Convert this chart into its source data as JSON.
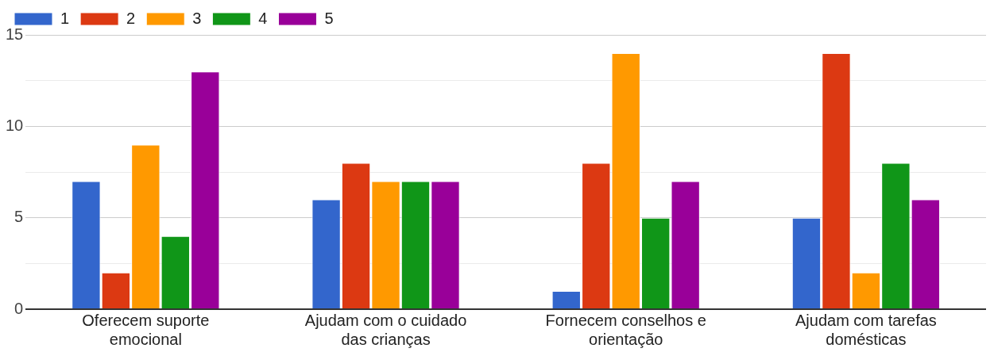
{
  "chart_data": {
    "type": "bar",
    "categories": [
      "Oferecem suporte emocional",
      "Ajudam com o cuidado das crianças",
      "Fornecem conselhos e orientação",
      "Ajudam com tarefas domésticas"
    ],
    "series": [
      {
        "name": "1",
        "color": "#3366cc",
        "values": [
          7,
          6,
          1,
          5
        ]
      },
      {
        "name": "2",
        "color": "#dc3912",
        "values": [
          2,
          8,
          8,
          14
        ]
      },
      {
        "name": "3",
        "color": "#ff9900",
        "values": [
          9,
          7,
          14,
          2
        ]
      },
      {
        "name": "4",
        "color": "#109618",
        "values": [
          4,
          7,
          5,
          8
        ]
      },
      {
        "name": "5",
        "color": "#990099",
        "values": [
          13,
          7,
          7,
          6
        ]
      }
    ],
    "ylim": [
      0,
      15
    ],
    "yticks": [
      0,
      {
        "value": 2.5,
        "label": null
      },
      5,
      {
        "value": 7.5,
        "label": null
      },
      10,
      {
        "value": 12.5,
        "label": null
      },
      15
    ],
    "grid": "y",
    "legend": "top left"
  }
}
